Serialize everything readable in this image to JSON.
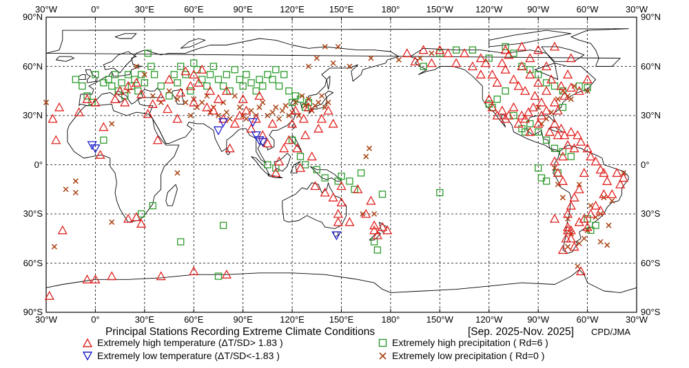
{
  "title": "Principal Stations Recording Extreme Climate Conditions",
  "period": "[Sep. 2025-Nov. 2025]",
  "credit": "CPD/JMA",
  "axes": {
    "lon_labels": [
      "30°W",
      "0°",
      "30°E",
      "60°E",
      "90°E",
      "120°E",
      "150°E",
      "180°",
      "150°W",
      "120°W",
      "90°W",
      "60°W",
      "30°W"
    ],
    "lat_labels": [
      "90°N",
      "60°N",
      "30°N",
      "0°",
      "30°S",
      "60°S",
      "90°S"
    ]
  },
  "legend": [
    {
      "marker": "triangle-up",
      "color": "#e0201e",
      "text": "Extremely high temperature (ΔT/SD> 1.83 )"
    },
    {
      "marker": "triangle-down",
      "color": "#1c1ccc",
      "text": "Extremely low temperature  (ΔT/SD<-1.83 )"
    },
    {
      "marker": "square",
      "color": "#2a9a2a",
      "text": "Extremely high precipitation ( Rd=6 )"
    },
    {
      "marker": "x",
      "color": "#a84010",
      "text": "Extremely low precipitation ( Rd=0 )"
    }
  ],
  "stations": {
    "high_temp": [
      [
        -26,
        28
      ],
      [
        -24,
        15
      ],
      [
        -22,
        35
      ],
      [
        -10,
        32
      ],
      [
        -5,
        40
      ],
      [
        0,
        38
      ],
      [
        5,
        23
      ],
      [
        3,
        6
      ],
      [
        12,
        40
      ],
      [
        15,
        45
      ],
      [
        18,
        38
      ],
      [
        20,
        48
      ],
      [
        25,
        50
      ],
      [
        28,
        43
      ],
      [
        32,
        31
      ],
      [
        35,
        37
      ],
      [
        38,
        15
      ],
      [
        40,
        41
      ],
      [
        44,
        34
      ],
      [
        45,
        52
      ],
      [
        50,
        28
      ],
      [
        52,
        44
      ],
      [
        55,
        57
      ],
      [
        58,
        48
      ],
      [
        60,
        55
      ],
      [
        60,
        38
      ],
      [
        63,
        50
      ],
      [
        65,
        58
      ],
      [
        68,
        35
      ],
      [
        70,
        45
      ],
      [
        72,
        33
      ],
      [
        75,
        40
      ],
      [
        78,
        28
      ],
      [
        80,
        45
      ],
      [
        82,
        10
      ],
      [
        85,
        25
      ],
      [
        88,
        30
      ],
      [
        90,
        40
      ],
      [
        92,
        33
      ],
      [
        95,
        22
      ],
      [
        98,
        28
      ],
      [
        100,
        42
      ],
      [
        102,
        18
      ],
      [
        105,
        13
      ],
      [
        108,
        25
      ],
      [
        110,
        -5
      ],
      [
        112,
        2
      ],
      [
        115,
        10
      ],
      [
        118,
        15
      ],
      [
        120,
        25
      ],
      [
        122,
        33
      ],
      [
        123,
        10
      ],
      [
        125,
        -2
      ],
      [
        127,
        28
      ],
      [
        128,
        18
      ],
      [
        130,
        35
      ],
      [
        132,
        5
      ],
      [
        134,
        -13
      ],
      [
        136,
        22
      ],
      [
        138,
        28
      ],
      [
        140,
        -17
      ],
      [
        142,
        33
      ],
      [
        145,
        -20
      ],
      [
        145,
        25
      ],
      [
        148,
        -35
      ],
      [
        148,
        -30
      ],
      [
        150,
        -23
      ],
      [
        150,
        -13
      ],
      [
        155,
        -35
      ],
      [
        160,
        -15
      ],
      [
        165,
        -30
      ],
      [
        168,
        -22
      ],
      [
        170,
        -40
      ],
      [
        170,
        -37
      ],
      [
        172,
        -43
      ],
      [
        175,
        -38
      ],
      [
        178,
        -40
      ],
      [
        -28,
        -80
      ],
      [
        -20,
        -40
      ],
      [
        -5,
        -70
      ],
      [
        0,
        -70
      ],
      [
        10,
        -68
      ],
      [
        25,
        -32
      ],
      [
        20,
        -33
      ],
      [
        28,
        -36
      ],
      [
        40,
        -68
      ],
      [
        60,
        -65
      ],
      [
        80,
        -67
      ],
      [
        -145,
        68
      ],
      [
        -135,
        68
      ],
      [
        -125,
        65
      ],
      [
        -122,
        62
      ],
      [
        -118,
        55
      ],
      [
        -115,
        50
      ],
      [
        -112,
        62
      ],
      [
        -110,
        58
      ],
      [
        -108,
        67
      ],
      [
        -105,
        52
      ],
      [
        -102,
        48
      ],
      [
        -100,
        60
      ],
      [
        -98,
        45
      ],
      [
        -95,
        55
      ],
      [
        -92,
        42
      ],
      [
        -90,
        50
      ],
      [
        -88,
        38
      ],
      [
        -85,
        45
      ],
      [
        -82,
        52
      ],
      [
        -80,
        38
      ],
      [
        -78,
        33
      ],
      [
        -76,
        48
      ],
      [
        -74,
        42
      ],
      [
        -72,
        55
      ],
      [
        -70,
        47
      ],
      [
        -120,
        40
      ],
      [
        -118,
        35
      ],
      [
        -115,
        30
      ],
      [
        -112,
        33
      ],
      [
        -110,
        28
      ],
      [
        -108,
        30
      ],
      [
        -105,
        35
      ],
      [
        -102,
        25
      ],
      [
        -100,
        30
      ],
      [
        -98,
        28
      ],
      [
        -96,
        32
      ],
      [
        -95,
        20
      ],
      [
        -93,
        35
      ],
      [
        -90,
        25
      ],
      [
        -88,
        30
      ],
      [
        -85,
        33
      ],
      [
        -83,
        20
      ],
      [
        -80,
        25
      ],
      [
        -78,
        18
      ],
      [
        -76,
        22
      ],
      [
        -74,
        18
      ],
      [
        -72,
        12
      ],
      [
        -70,
        20
      ],
      [
        -68,
        10
      ],
      [
        -66,
        18
      ],
      [
        -64,
        14
      ],
      [
        -60,
        10
      ],
      [
        -58,
        5
      ],
      [
        -55,
        2
      ],
      [
        -52,
        -3
      ],
      [
        -50,
        -5
      ],
      [
        -48,
        -10
      ],
      [
        -45,
        -18
      ],
      [
        -42,
        -5
      ],
      [
        -40,
        -12
      ],
      [
        -38,
        -8
      ],
      [
        -62,
        -5
      ],
      [
        -65,
        -15
      ],
      [
        -68,
        -20
      ],
      [
        -70,
        -25
      ],
      [
        -72,
        -30
      ],
      [
        -72,
        -40
      ],
      [
        -70,
        -45
      ],
      [
        -68,
        -50
      ],
      [
        -65,
        -35
      ],
      [
        -62,
        -33
      ],
      [
        -60,
        -38
      ],
      [
        -58,
        -30
      ],
      [
        -55,
        -25
      ],
      [
        -52,
        -28
      ],
      [
        -50,
        -18
      ],
      [
        -75,
        -10
      ],
      [
        -78,
        -5
      ],
      [
        -80,
        2
      ],
      [
        -75,
        5
      ],
      [
        -72,
        -38
      ],
      [
        -73,
        -45
      ],
      [
        -75,
        -52
      ],
      [
        -64,
        -65
      ],
      [
        -80,
        -33
      ],
      [
        -70,
        -40
      ],
      [
        -110,
        70
      ],
      [
        -100,
        72
      ],
      [
        -90,
        70
      ],
      [
        -80,
        72
      ],
      [
        -70,
        65
      ],
      [
        -85,
        60
      ],
      [
        -95,
        65
      ],
      [
        -60,
        52
      ],
      [
        -65,
        45
      ],
      [
        -125,
        55
      ],
      [
        -130,
        60
      ],
      [
        -140,
        62
      ],
      [
        -150,
        70
      ],
      [
        -160,
        70
      ],
      [
        -155,
        62
      ],
      [
        -165,
        63
      ],
      [
        -170,
        68
      ]
    ],
    "low_temp": [
      [
        -2,
        12
      ],
      [
        0,
        10
      ],
      [
        75,
        21
      ],
      [
        78,
        26
      ],
      [
        96,
        26
      ],
      [
        98,
        18
      ],
      [
        100,
        15
      ],
      [
        102,
        14
      ],
      [
        147,
        -43
      ]
    ],
    "high_precip": [
      [
        -12,
        52
      ],
      [
        -8,
        48
      ],
      [
        -5,
        42
      ],
      [
        -2,
        38
      ],
      [
        0,
        55
      ],
      [
        5,
        50
      ],
      [
        8,
        52
      ],
      [
        10,
        48
      ],
      [
        12,
        55
      ],
      [
        14,
        45
      ],
      [
        16,
        50
      ],
      [
        18,
        42
      ],
      [
        20,
        55
      ],
      [
        22,
        48
      ],
      [
        24,
        52
      ],
      [
        26,
        45
      ],
      [
        28,
        55
      ],
      [
        30,
        50
      ],
      [
        32,
        68
      ],
      [
        34,
        60
      ],
      [
        36,
        55
      ],
      [
        40,
        48
      ],
      [
        45,
        42
      ],
      [
        48,
        55
      ],
      [
        50,
        50
      ],
      [
        52,
        60
      ],
      [
        55,
        55
      ],
      [
        58,
        45
      ],
      [
        60,
        62
      ],
      [
        62,
        58
      ],
      [
        65,
        52
      ],
      [
        68,
        48
      ],
      [
        70,
        55
      ],
      [
        72,
        60
      ],
      [
        75,
        52
      ],
      [
        78,
        48
      ],
      [
        80,
        55
      ],
      [
        82,
        45
      ],
      [
        85,
        58
      ],
      [
        88,
        52
      ],
      [
        90,
        48
      ],
      [
        92,
        55
      ],
      [
        95,
        50
      ],
      [
        98,
        45
      ],
      [
        100,
        52
      ],
      [
        102,
        48
      ],
      [
        105,
        55
      ],
      [
        108,
        52
      ],
      [
        110,
        58
      ],
      [
        112,
        48
      ],
      [
        115,
        55
      ],
      [
        118,
        45
      ],
      [
        120,
        38
      ],
      [
        122,
        42
      ],
      [
        125,
        40
      ],
      [
        128,
        35
      ],
      [
        130,
        38
      ],
      [
        5,
        15
      ],
      [
        28,
        -30
      ],
      [
        35,
        -25
      ],
      [
        52,
        -47
      ],
      [
        78,
        -37
      ],
      [
        75,
        -68
      ],
      [
        105,
        0
      ],
      [
        110,
        -2
      ],
      [
        120,
        15
      ],
      [
        125,
        5
      ],
      [
        128,
        0
      ],
      [
        135,
        -3
      ],
      [
        140,
        -8
      ],
      [
        148,
        -10
      ],
      [
        150,
        -7
      ],
      [
        155,
        -10
      ],
      [
        170,
        -47
      ],
      [
        172,
        -52
      ],
      [
        158,
        -15
      ],
      [
        162,
        -5
      ],
      [
        175,
        -18
      ],
      [
        -150,
        -17
      ],
      [
        -160,
        60
      ],
      [
        -150,
        68
      ],
      [
        -140,
        70
      ],
      [
        -130,
        70
      ],
      [
        -120,
        65
      ],
      [
        -110,
        72
      ],
      [
        -105,
        68
      ],
      [
        -100,
        60
      ],
      [
        -95,
        58
      ],
      [
        -90,
        55
      ],
      [
        -85,
        50
      ],
      [
        -80,
        48
      ],
      [
        -75,
        45
      ],
      [
        -65,
        48
      ],
      [
        -60,
        47
      ],
      [
        -118,
        35
      ],
      [
        -115,
        40
      ],
      [
        -110,
        45
      ],
      [
        -105,
        30
      ],
      [
        -100,
        22
      ],
      [
        -98,
        20
      ],
      [
        -95,
        25
      ],
      [
        -90,
        20
      ],
      [
        -85,
        15
      ],
      [
        -80,
        10
      ],
      [
        -75,
        8
      ],
      [
        -70,
        5
      ],
      [
        -78,
        -5
      ],
      [
        -60,
        -33
      ],
      [
        -55,
        -37
      ],
      [
        -58,
        -40
      ],
      [
        -90,
        -2
      ],
      [
        -88,
        -8
      ],
      [
        -85,
        -10
      ],
      [
        -120,
        37
      ],
      [
        -75,
        35
      ]
    ],
    "low_precip": [
      [
        -30,
        38
      ],
      [
        -18,
        -15
      ],
      [
        50,
        -5
      ],
      [
        -12,
        -10
      ],
      [
        10,
        25
      ],
      [
        20,
        45
      ],
      [
        25,
        60
      ],
      [
        30,
        55
      ],
      [
        35,
        42
      ],
      [
        40,
        38
      ],
      [
        45,
        45
      ],
      [
        50,
        40
      ],
      [
        55,
        38
      ],
      [
        58,
        30
      ],
      [
        60,
        40
      ],
      [
        62,
        35
      ],
      [
        65,
        38
      ],
      [
        68,
        42
      ],
      [
        70,
        32
      ],
      [
        72,
        35
      ],
      [
        75,
        30
      ],
      [
        78,
        38
      ],
      [
        80,
        32
      ],
      [
        82,
        28
      ],
      [
        85,
        42
      ],
      [
        88,
        35
      ],
      [
        90,
        30
      ],
      [
        92,
        28
      ],
      [
        95,
        33
      ],
      [
        98,
        30
      ],
      [
        100,
        35
      ],
      [
        102,
        38
      ],
      [
        105,
        30
      ],
      [
        108,
        32
      ],
      [
        110,
        35
      ],
      [
        112,
        28
      ],
      [
        114,
        33
      ],
      [
        116,
        36
      ],
      [
        118,
        30
      ],
      [
        120,
        32
      ],
      [
        122,
        38
      ],
      [
        124,
        30
      ],
      [
        126,
        42
      ],
      [
        128,
        36
      ],
      [
        130,
        40
      ],
      [
        132,
        33
      ],
      [
        134,
        36
      ],
      [
        136,
        38
      ],
      [
        138,
        42
      ],
      [
        140,
        35
      ],
      [
        142,
        38
      ],
      [
        130,
        60
      ],
      [
        135,
        65
      ],
      [
        145,
        62
      ],
      [
        155,
        60
      ],
      [
        140,
        72
      ],
      [
        148,
        72
      ],
      [
        163,
        -30
      ],
      [
        168,
        65
      ],
      [
        167,
        10
      ],
      [
        165,
        5
      ],
      [
        170,
        -30
      ],
      [
        -38,
        -5
      ],
      [
        -52,
        -30
      ],
      [
        -55,
        -32
      ],
      [
        -50,
        -20
      ],
      [
        -45,
        -22
      ],
      [
        -60,
        -40
      ],
      [
        -62,
        -45
      ],
      [
        -65,
        -48
      ],
      [
        -66,
        -62
      ],
      [
        -70,
        -42
      ],
      [
        -72,
        -50
      ],
      [
        -72,
        -33
      ],
      [
        -75,
        -20
      ],
      [
        -78,
        -12
      ],
      [
        -80,
        -2
      ],
      [
        -65,
        -12
      ],
      [
        -70,
        40
      ],
      [
        -72,
        42
      ],
      [
        -75,
        45
      ],
      [
        -78,
        40
      ],
      [
        -82,
        32
      ],
      [
        -85,
        28
      ],
      [
        -88,
        25
      ],
      [
        -90,
        35
      ],
      [
        -60,
        45
      ],
      [
        -68,
        48
      ],
      [
        -58,
        -25
      ],
      [
        -47,
        -37
      ],
      [
        -52,
        -47
      ],
      [
        -48,
        -49
      ],
      [
        -12,
        -17
      ],
      [
        10,
        -35
      ],
      [
        -25,
        -50
      ],
      [
        -175,
        64
      ],
      [
        -162,
        65
      ],
      [
        -155,
        68
      ]
    ]
  }
}
